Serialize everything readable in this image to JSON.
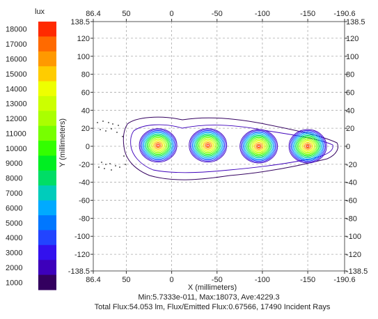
{
  "chart_data": {
    "type": "contour",
    "unit": "lux",
    "xlabel": "X (millimeters)",
    "ylabel": "Y (millimeters)",
    "xlim": [
      86.4,
      -190.6
    ],
    "ylim": [
      -138.5,
      138.5
    ],
    "x_ticks_bottom": [
      "86.4",
      "50",
      "0",
      "-50",
      "-100",
      "-150",
      "-190.6"
    ],
    "x_ticks_top": [
      "86.4",
      "50",
      "0",
      "-50",
      "-100",
      "-150",
      "-190.6"
    ],
    "x_tick_values": [
      86.4,
      50,
      0,
      -50,
      -100,
      -150,
      -190.6
    ],
    "y_ticks": [
      "138.5",
      "120",
      "100",
      "80",
      "60",
      "40",
      "20",
      "0",
      "-20",
      "-40",
      "-60",
      "-80",
      "-100",
      "-120",
      "-138.5"
    ],
    "y_tick_values": [
      138.5,
      120,
      100,
      80,
      60,
      40,
      20,
      0,
      -20,
      -40,
      -60,
      -80,
      -100,
      -120,
      -138.5
    ],
    "legend": {
      "title": "lux",
      "levels": [
        "18000",
        "17000",
        "16000",
        "15000",
        "14000",
        "13000",
        "12000",
        "11000",
        "10000",
        "9000",
        "8000",
        "7000",
        "6000",
        "5000",
        "4000",
        "3000",
        "2000",
        "1000"
      ],
      "colors": [
        "#ff2a00",
        "#ff6a00",
        "#ff9900",
        "#ffcc00",
        "#eeff00",
        "#ccff00",
        "#aaff00",
        "#77ff00",
        "#33ff00",
        "#00ee22",
        "#00dd66",
        "#00ccbb",
        "#00aaff",
        "#0077ff",
        "#2244ff",
        "#3311ee",
        "#3d00bb",
        "#33005f"
      ]
    },
    "hotspots": [
      {
        "x": 15,
        "y": 1
      },
      {
        "x": -40,
        "y": 1
      },
      {
        "x": -96,
        "y": 0
      },
      {
        "x": -150,
        "y": 0
      }
    ],
    "stats_line1": "Min:5.7333e-011, Max:18073, Ave:4229.3",
    "stats_line2": "Total Flux:54.053 lm, Flux/Emitted Flux:0.67566, 17490 Incident Rays"
  }
}
